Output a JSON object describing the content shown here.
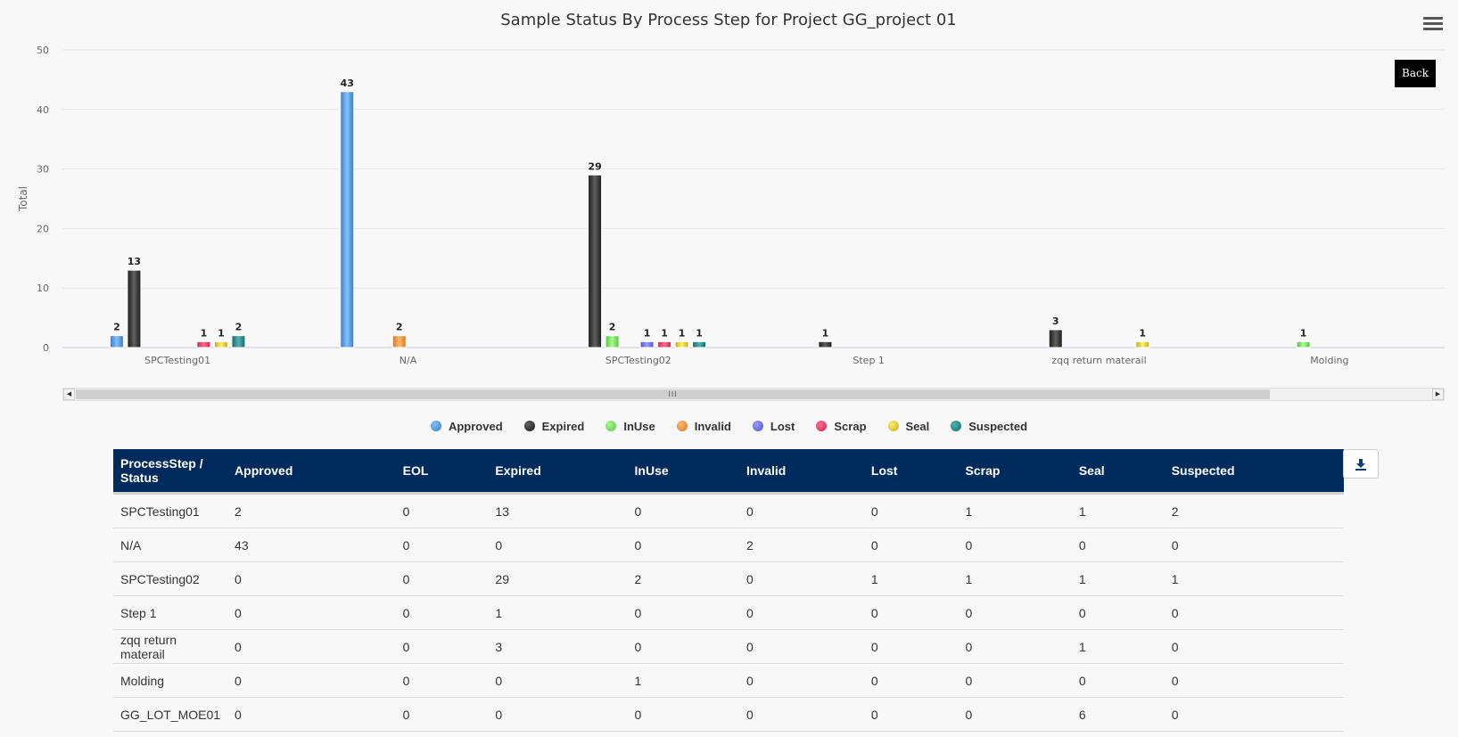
{
  "chart_data": {
    "type": "bar",
    "title": "Sample Status By Process Step for Project GG_project 01",
    "ylabel": "Total",
    "ylim": [
      0,
      50
    ],
    "yticks": [
      0,
      10,
      20,
      30,
      40,
      50
    ],
    "grid": true,
    "legend_position": "bottom",
    "categories": [
      "SPCTesting01",
      "N/A",
      "SPCTesting02",
      "Step 1",
      "zqq return materail",
      "Molding"
    ],
    "series": [
      {
        "name": "Approved",
        "color": "#3b7bc0",
        "values": [
          2,
          43,
          0,
          0,
          0,
          0
        ]
      },
      {
        "name": "Expired",
        "color": "#1a1a1a",
        "values": [
          13,
          0,
          29,
          1,
          3,
          0
        ]
      },
      {
        "name": "InUse",
        "color": "#5cbf45",
        "values": [
          0,
          0,
          2,
          0,
          0,
          1
        ]
      },
      {
        "name": "Invalid",
        "color": "#d97526",
        "values": [
          0,
          2,
          0,
          0,
          0,
          0
        ]
      },
      {
        "name": "Lost",
        "color": "#5155c9",
        "values": [
          0,
          0,
          1,
          0,
          0,
          0
        ]
      },
      {
        "name": "Scrap",
        "color": "#cc2650",
        "values": [
          1,
          0,
          1,
          0,
          0,
          0
        ]
      },
      {
        "name": "Seal",
        "color": "#c4aa22",
        "values": [
          1,
          0,
          1,
          0,
          1,
          0
        ]
      },
      {
        "name": "Suspected",
        "color": "#0e6b6b",
        "values": [
          2,
          0,
          1,
          0,
          0,
          0
        ]
      }
    ]
  },
  "ui": {
    "back_label": "Back",
    "menu_icon": "hamburger-menu-icon",
    "download_icon": "download-icon",
    "scrollbar_grip": "III",
    "scroll_left": "◀",
    "scroll_right": "▶"
  },
  "table": {
    "headers": [
      "ProcessStep / Status",
      "Approved",
      "EOL",
      "Expired",
      "InUse",
      "Invalid",
      "Lost",
      "Scrap",
      "Seal",
      "Suspected"
    ],
    "rows": [
      [
        "SPCTesting01",
        "2",
        "0",
        "13",
        "0",
        "0",
        "0",
        "1",
        "1",
        "2"
      ],
      [
        "N/A",
        "43",
        "0",
        "0",
        "0",
        "2",
        "0",
        "0",
        "0",
        "0"
      ],
      [
        "SPCTesting02",
        "0",
        "0",
        "29",
        "2",
        "0",
        "1",
        "1",
        "1",
        "1"
      ],
      [
        "Step 1",
        "0",
        "0",
        "1",
        "0",
        "0",
        "0",
        "0",
        "0",
        "0"
      ],
      [
        "zqq return materail",
        "0",
        "0",
        "3",
        "0",
        "0",
        "0",
        "0",
        "1",
        "0"
      ],
      [
        "Molding",
        "0",
        "0",
        "0",
        "1",
        "0",
        "0",
        "0",
        "0",
        "0"
      ],
      [
        "GG_LOT_MOE01",
        "0",
        "0",
        "0",
        "0",
        "0",
        "0",
        "0",
        "6",
        "0"
      ]
    ]
  }
}
